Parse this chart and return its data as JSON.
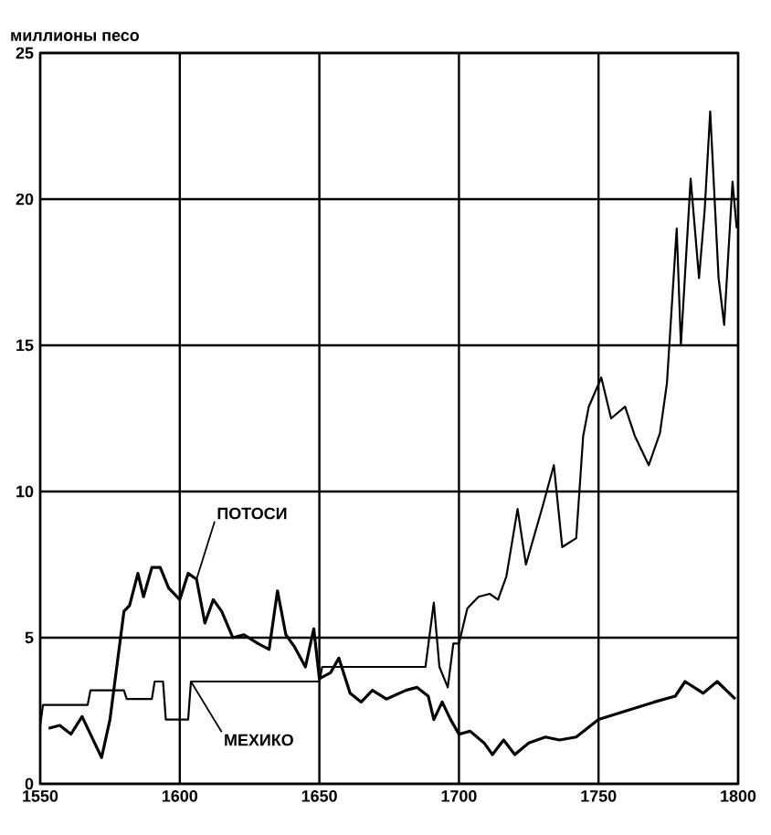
{
  "chart_data": {
    "type": "line",
    "ylabel": "миллионы песо",
    "xlim": [
      1550,
      1800
    ],
    "xticks": [
      1550,
      1600,
      1650,
      1700,
      1750,
      1800
    ],
    "ylim": [
      0,
      25
    ],
    "yticks": [
      0,
      5,
      10,
      15,
      20,
      25
    ],
    "grid": true,
    "legend": false,
    "series": [
      {
        "name": "ПОТОСИ",
        "color": "#000000",
        "x": [
          1553,
          1557,
          1561,
          1565,
          1568,
          1572,
          1575,
          1580,
          1582,
          1585,
          1587,
          1590,
          1593,
          1596,
          1600,
          1603,
          1606,
          1609,
          1612,
          1615,
          1619,
          1623,
          1628,
          1632,
          1635,
          1638,
          1641,
          1645,
          1648,
          1650,
          1654,
          1657,
          1661,
          1665,
          1669,
          1674,
          1681,
          1685,
          1689,
          1691,
          1694,
          1697,
          1700,
          1704,
          1709,
          1712,
          1716,
          1720,
          1725,
          1731,
          1736,
          1742,
          1750,
          1760,
          1770,
          1777.5,
          1781,
          1787.5,
          1792.5,
          1799
        ],
        "values": [
          1.9,
          2.0,
          1.7,
          2.3,
          1.7,
          0.9,
          2.2,
          5.9,
          6.1,
          7.2,
          6.4,
          7.4,
          7.4,
          6.7,
          6.3,
          7.2,
          7.0,
          5.5,
          6.3,
          5.9,
          5.0,
          5.1,
          4.8,
          4.6,
          6.6,
          5.1,
          4.7,
          4.0,
          5.3,
          3.6,
          3.8,
          4.3,
          3.1,
          2.8,
          3.2,
          2.9,
          3.2,
          3.3,
          3.0,
          2.2,
          2.8,
          2.2,
          1.7,
          1.8,
          1.4,
          1.0,
          1.5,
          1.0,
          1.4,
          1.6,
          1.5,
          1.6,
          2.2,
          2.5,
          2.8,
          3.0,
          3.5,
          3.1,
          3.5,
          2.9
        ]
      },
      {
        "name": "МЕХИКО",
        "color": "#000000",
        "x": [
          1550,
          1551,
          1567,
          1568,
          1580,
          1581,
          1590,
          1591,
          1594,
          1595,
          1603,
          1604,
          1650,
          1651,
          1688,
          1691,
          1693,
          1696,
          1698,
          1700,
          1703,
          1707,
          1711,
          1714,
          1717,
          1721,
          1724,
          1730,
          1734,
          1737,
          1742,
          1744.5,
          1746.5,
          1751,
          1754.5,
          1759.5,
          1763,
          1768,
          1772,
          1774.5,
          1778,
          1779.5,
          1783,
          1786,
          1788,
          1790,
          1793,
          1795,
          1798,
          1799.5
        ],
        "values": [
          2.0,
          2.7,
          2.7,
          3.2,
          3.2,
          2.9,
          2.9,
          3.5,
          3.5,
          2.2,
          2.2,
          3.5,
          3.5,
          4.0,
          4.0,
          6.2,
          4.0,
          3.3,
          4.8,
          4.8,
          6.0,
          6.4,
          6.5,
          6.3,
          7.1,
          9.4,
          7.5,
          9.5,
          10.9,
          8.1,
          8.4,
          11.9,
          12.9,
          13.9,
          12.5,
          12.9,
          11.9,
          10.9,
          12.0,
          13.7,
          19.0,
          15.0,
          20.7,
          17.3,
          19.6,
          23.0,
          17.3,
          15.7,
          20.6,
          19.0
        ]
      }
    ]
  }
}
